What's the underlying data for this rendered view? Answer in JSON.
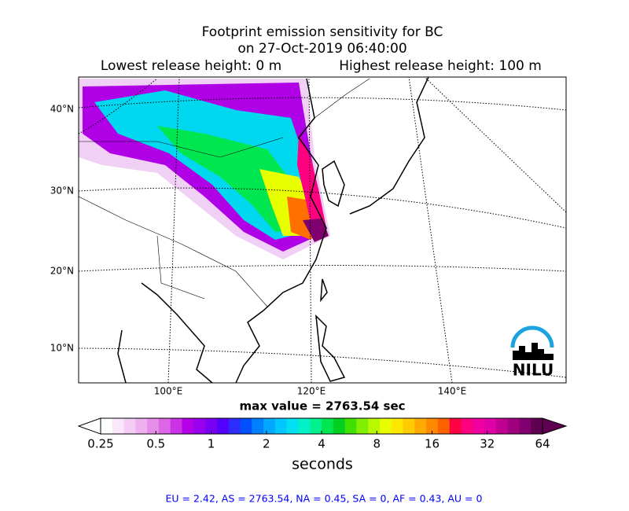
{
  "title": [
    "Footprint emission sensitivity for BC",
    "on 27-Oct-2019 06:40:00",
    "Lowest release height: 0 m",
    "Highest release height: 100 m"
  ],
  "map": {
    "lat_labels": [
      "40°N",
      "30°N",
      "20°N",
      "10°N"
    ],
    "lon_labels": [
      "100°E",
      "120°E",
      "140°E"
    ],
    "logo": "NILU"
  },
  "max_value": "max value = 2763.54 sec",
  "colorbar": {
    "label": "seconds",
    "log": true,
    "lim": [
      0.25,
      64
    ],
    "ticks": [
      0.25,
      0.5,
      1,
      2,
      4,
      8,
      16,
      32,
      64
    ],
    "colors": [
      "#ffffff",
      "#fbe6fb",
      "#f5ccf5",
      "#eeb0f0",
      "#e68ce9",
      "#dd66e6",
      "#cc33e6",
      "#b300e6",
      "#9900ee",
      "#7a00f5",
      "#5500ff",
      "#2d2dff",
      "#0050ff",
      "#0080ff",
      "#00a8ff",
      "#00c8ff",
      "#00e0f0",
      "#00f0c8",
      "#00f090",
      "#00e650",
      "#00d020",
      "#40e000",
      "#80f000",
      "#b8f800",
      "#e8ff00",
      "#ffe800",
      "#ffcc00",
      "#ffaa00",
      "#ff8800",
      "#ff6000",
      "#ff0040",
      "#ff0080",
      "#f000a0",
      "#e000a8",
      "#c00090",
      "#a00080",
      "#800070",
      "#600050"
    ]
  },
  "footer": "EU = 2.42,  AS = 2763.54,  NA = 0.45,  SA = 0,  AF = 0.43,  AU = 0"
}
